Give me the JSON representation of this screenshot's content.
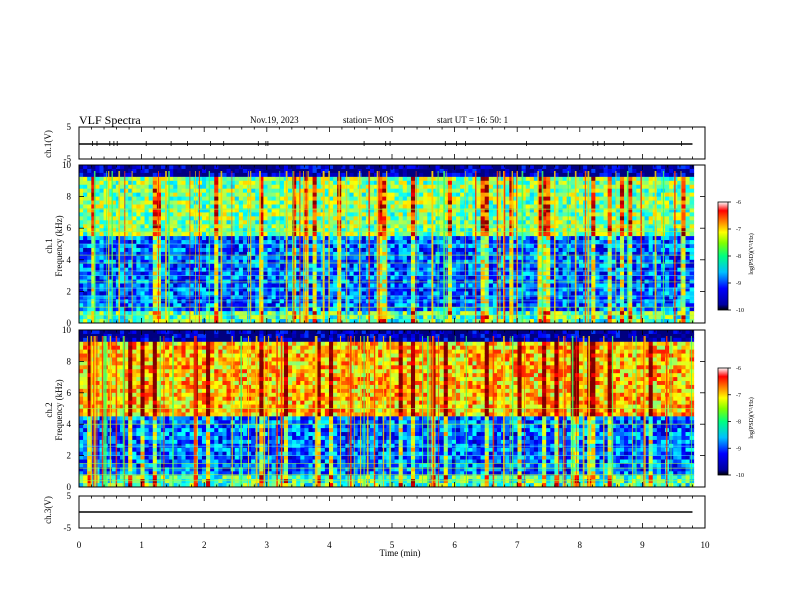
{
  "header": {
    "title": "VLF Spectra",
    "date": "Nov.19, 2023",
    "station": "station= MOS",
    "start": "start  UT =   16: 50: 1"
  },
  "chart_data": [
    {
      "type": "line",
      "panel": "ch1-waveform",
      "ylabel": "ch.1(V)",
      "ylim": [
        -5,
        5
      ],
      "yticks": [
        "5",
        "-5"
      ],
      "xlim": [
        0,
        10
      ],
      "series": [
        {
          "values_note": "",
          "x": [
            0,
            9.8
          ],
          "y": [
            0,
            0
          ]
        }
      ]
    },
    {
      "type": "heatmap",
      "panel": "ch1-spectrogram",
      "ylabel": "ch.1\nFrequency (kHz)",
      "xlim": [
        0,
        10
      ],
      "ylim": [
        0,
        10
      ],
      "yticks": [
        "0",
        "2",
        "4",
        "6",
        "8",
        "10"
      ],
      "colorbar": {
        "label": "log(PSD)(V²/Hz)",
        "range": [
          -10,
          -6
        ],
        "ticks": [
          "-6",
          "-7",
          "-8",
          "-9",
          "-10"
        ]
      }
    },
    {
      "type": "heatmap",
      "panel": "ch2-spectrogram",
      "ylabel": "ch.2\nFrequency (kHz)",
      "xlim": [
        0,
        10
      ],
      "ylim": [
        0,
        10
      ],
      "yticks": [
        "0",
        "2",
        "4",
        "6",
        "8",
        "10"
      ],
      "colorbar": {
        "label": "log(PSD)(V²/Hz)",
        "range": [
          -10,
          -6
        ],
        "ticks": [
          "-6",
          "-7",
          "-8",
          "-9",
          "-10"
        ]
      }
    },
    {
      "type": "line",
      "panel": "ch3-waveform",
      "ylabel": "ch.3(V)",
      "ylim": [
        -5,
        5
      ],
      "yticks": [
        "5",
        "-5"
      ],
      "xlim": [
        0,
        10
      ],
      "xlabel": "Time  (min)",
      "xticks": [
        "0",
        "1",
        "2",
        "3",
        "4",
        "5",
        "6",
        "7",
        "8",
        "9",
        "10"
      ],
      "series": [
        {
          "x": [
            0,
            9.8
          ],
          "y": [
            0,
            0
          ]
        }
      ]
    }
  ]
}
